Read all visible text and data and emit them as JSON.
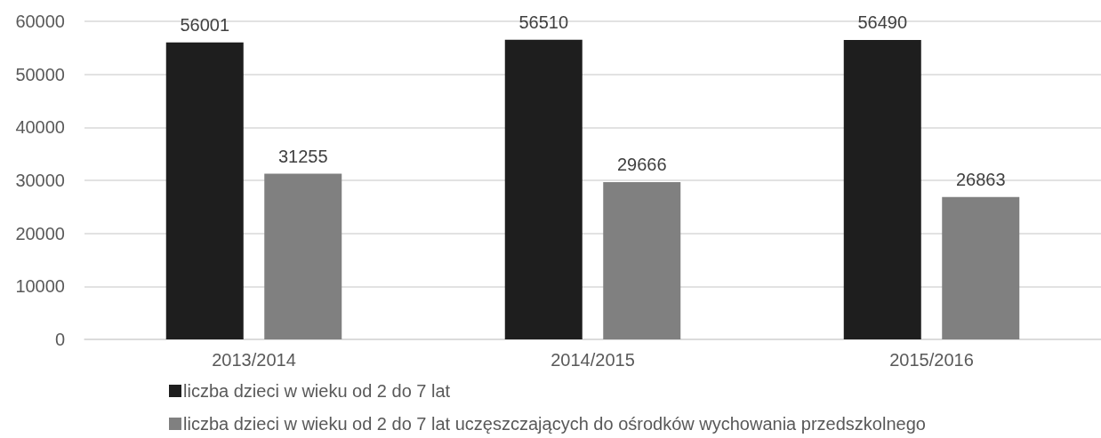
{
  "chart_data": {
    "type": "bar",
    "categories": [
      "2013/2014",
      "2014/2015",
      "2015/2016"
    ],
    "series": [
      {
        "name": "liczba dzieci w wieku od 2 do 7 lat",
        "color": "#1e1e1e",
        "values": [
          56001,
          56510,
          56490
        ]
      },
      {
        "name": "liczba dzieci w wieku od 2 do 7 lat uczęszczających do ośrodków wychowania przedszkolnego",
        "color": "#808080",
        "values": [
          31255,
          29666,
          26863
        ]
      }
    ],
    "ylim": [
      0,
      60000
    ],
    "yticks": [
      0,
      10000,
      20000,
      30000,
      40000,
      50000,
      60000
    ],
    "grid": "y",
    "legend": "bottom",
    "data_labels": true
  }
}
